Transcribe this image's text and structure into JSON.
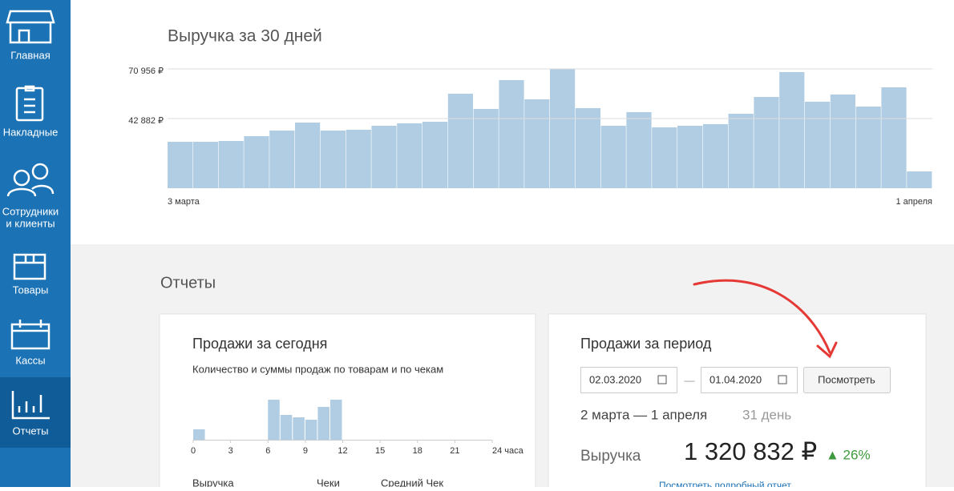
{
  "sidebar": {
    "items": [
      "Главная",
      "Накладные",
      [
        "Сотрудники",
        "и клиенты"
      ],
      "Товары",
      "Кассы",
      "Отчеты"
    ]
  },
  "chart_data": [
    {
      "type": "bar",
      "title": "Выручка за 30 дней",
      "color": "#b0cde3",
      "categories": [
        "3 марта",
        null,
        null,
        null,
        null,
        null,
        null,
        null,
        null,
        null,
        null,
        null,
        null,
        null,
        null,
        null,
        null,
        null,
        null,
        null,
        null,
        null,
        null,
        null,
        null,
        null,
        null,
        null,
        null,
        "1 апреля"
      ],
      "values": [
        29750,
        29750,
        30200,
        32920,
        36090,
        40620,
        36090,
        36540,
        38810,
        40170,
        41070,
        56920,
        48320,
        64620,
        53750,
        70956,
        48770,
        38810,
        46500,
        37900,
        38810,
        39710,
        45600,
        55110,
        69140,
        52390,
        56470,
        49670,
        60540,
        13000
      ],
      "ylim": [
        3500,
        70956
      ],
      "yticks": [
        {
          "value": 42882,
          "label": "42 882 ₽"
        },
        {
          "value": 70956,
          "label": "70 956 ₽"
        }
      ],
      "grid": true
    },
    {
      "type": "histogram",
      "title": "Продажи за сегодня",
      "subtitle": "Количество и суммы продаж по товарам и по чекам",
      "color": "#b0cde3",
      "bins": [
        0,
        1,
        2,
        3,
        4,
        5,
        6,
        7,
        8,
        9,
        10,
        11,
        12,
        13,
        14,
        15,
        16,
        17,
        18,
        19,
        20,
        21,
        22,
        23,
        24
      ],
      "values": [
        13,
        0,
        0,
        0,
        0,
        0,
        50,
        31,
        28,
        25,
        41,
        50,
        0,
        0,
        0,
        0,
        0,
        0,
        0,
        0,
        0,
        0,
        0,
        0
      ],
      "ylim": [
        0,
        55
      ],
      "xlim": [
        0,
        24
      ],
      "xticks": [
        0,
        3,
        6,
        9,
        12,
        15,
        18,
        21,
        {
          "value": 24,
          "label": "24 часа"
        }
      ]
    }
  ],
  "reports": {
    "title": "Отчеты",
    "today": {
      "columns": [
        "Выручка",
        "Чеки",
        "Средний Чек"
      ]
    },
    "period": {
      "title": "Продажи за период",
      "date_from": "02.03.2020",
      "dash": "—",
      "date_to": "01.04.2020",
      "button": "Посмотреть",
      "range": "2 марта — 1 апреля",
      "days": "31 день",
      "revenue_label": "Выручка",
      "revenue": "1 320 832 ₽",
      "change": "▲ 26%",
      "link": "Посмотреть подробный отчет"
    }
  }
}
